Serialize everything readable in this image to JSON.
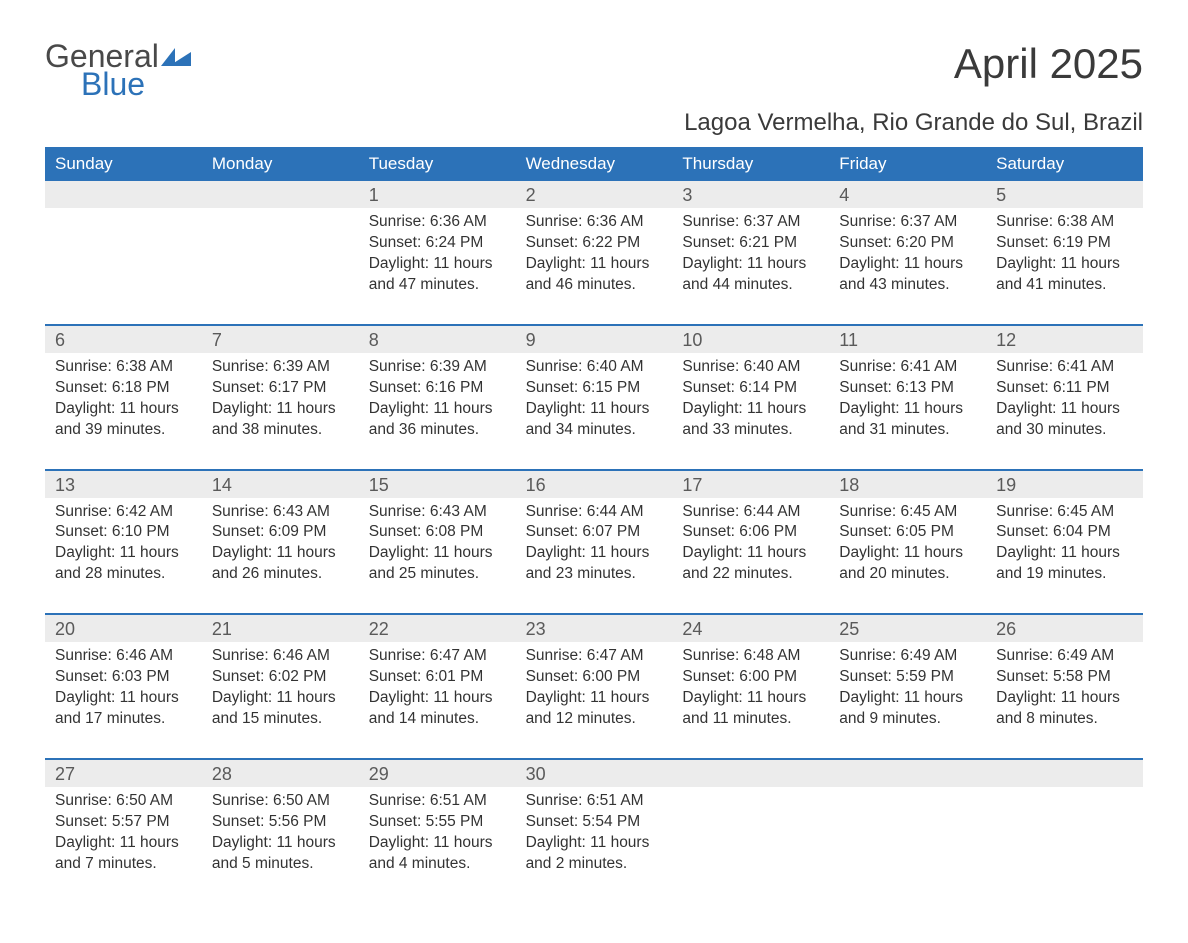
{
  "logo": {
    "word1": "General",
    "word2": "Blue"
  },
  "title": "April 2025",
  "location": "Lagoa Vermelha, Rio Grande do Sul, Brazil",
  "colors": {
    "header_bg": "#2c72b8",
    "header_text": "#ffffff",
    "daynum_bg": "#ececec",
    "text": "#333333",
    "title_text": "#3a3a3a",
    "week_border": "#2c72b8"
  },
  "day_headers": [
    "Sunday",
    "Monday",
    "Tuesday",
    "Wednesday",
    "Thursday",
    "Friday",
    "Saturday"
  ],
  "weeks": [
    [
      {
        "num": "",
        "lines": []
      },
      {
        "num": "",
        "lines": []
      },
      {
        "num": "1",
        "lines": [
          "Sunrise: 6:36 AM",
          "Sunset: 6:24 PM",
          "Daylight: 11 hours",
          "and 47 minutes."
        ]
      },
      {
        "num": "2",
        "lines": [
          "Sunrise: 6:36 AM",
          "Sunset: 6:22 PM",
          "Daylight: 11 hours",
          "and 46 minutes."
        ]
      },
      {
        "num": "3",
        "lines": [
          "Sunrise: 6:37 AM",
          "Sunset: 6:21 PM",
          "Daylight: 11 hours",
          "and 44 minutes."
        ]
      },
      {
        "num": "4",
        "lines": [
          "Sunrise: 6:37 AM",
          "Sunset: 6:20 PM",
          "Daylight: 11 hours",
          "and 43 minutes."
        ]
      },
      {
        "num": "5",
        "lines": [
          "Sunrise: 6:38 AM",
          "Sunset: 6:19 PM",
          "Daylight: 11 hours",
          "and 41 minutes."
        ]
      }
    ],
    [
      {
        "num": "6",
        "lines": [
          "Sunrise: 6:38 AM",
          "Sunset: 6:18 PM",
          "Daylight: 11 hours",
          "and 39 minutes."
        ]
      },
      {
        "num": "7",
        "lines": [
          "Sunrise: 6:39 AM",
          "Sunset: 6:17 PM",
          "Daylight: 11 hours",
          "and 38 minutes."
        ]
      },
      {
        "num": "8",
        "lines": [
          "Sunrise: 6:39 AM",
          "Sunset: 6:16 PM",
          "Daylight: 11 hours",
          "and 36 minutes."
        ]
      },
      {
        "num": "9",
        "lines": [
          "Sunrise: 6:40 AM",
          "Sunset: 6:15 PM",
          "Daylight: 11 hours",
          "and 34 minutes."
        ]
      },
      {
        "num": "10",
        "lines": [
          "Sunrise: 6:40 AM",
          "Sunset: 6:14 PM",
          "Daylight: 11 hours",
          "and 33 minutes."
        ]
      },
      {
        "num": "11",
        "lines": [
          "Sunrise: 6:41 AM",
          "Sunset: 6:13 PM",
          "Daylight: 11 hours",
          "and 31 minutes."
        ]
      },
      {
        "num": "12",
        "lines": [
          "Sunrise: 6:41 AM",
          "Sunset: 6:11 PM",
          "Daylight: 11 hours",
          "and 30 minutes."
        ]
      }
    ],
    [
      {
        "num": "13",
        "lines": [
          "Sunrise: 6:42 AM",
          "Sunset: 6:10 PM",
          "Daylight: 11 hours",
          "and 28 minutes."
        ]
      },
      {
        "num": "14",
        "lines": [
          "Sunrise: 6:43 AM",
          "Sunset: 6:09 PM",
          "Daylight: 11 hours",
          "and 26 minutes."
        ]
      },
      {
        "num": "15",
        "lines": [
          "Sunrise: 6:43 AM",
          "Sunset: 6:08 PM",
          "Daylight: 11 hours",
          "and 25 minutes."
        ]
      },
      {
        "num": "16",
        "lines": [
          "Sunrise: 6:44 AM",
          "Sunset: 6:07 PM",
          "Daylight: 11 hours",
          "and 23 minutes."
        ]
      },
      {
        "num": "17",
        "lines": [
          "Sunrise: 6:44 AM",
          "Sunset: 6:06 PM",
          "Daylight: 11 hours",
          "and 22 minutes."
        ]
      },
      {
        "num": "18",
        "lines": [
          "Sunrise: 6:45 AM",
          "Sunset: 6:05 PM",
          "Daylight: 11 hours",
          "and 20 minutes."
        ]
      },
      {
        "num": "19",
        "lines": [
          "Sunrise: 6:45 AM",
          "Sunset: 6:04 PM",
          "Daylight: 11 hours",
          "and 19 minutes."
        ]
      }
    ],
    [
      {
        "num": "20",
        "lines": [
          "Sunrise: 6:46 AM",
          "Sunset: 6:03 PM",
          "Daylight: 11 hours",
          "and 17 minutes."
        ]
      },
      {
        "num": "21",
        "lines": [
          "Sunrise: 6:46 AM",
          "Sunset: 6:02 PM",
          "Daylight: 11 hours",
          "and 15 minutes."
        ]
      },
      {
        "num": "22",
        "lines": [
          "Sunrise: 6:47 AM",
          "Sunset: 6:01 PM",
          "Daylight: 11 hours",
          "and 14 minutes."
        ]
      },
      {
        "num": "23",
        "lines": [
          "Sunrise: 6:47 AM",
          "Sunset: 6:00 PM",
          "Daylight: 11 hours",
          "and 12 minutes."
        ]
      },
      {
        "num": "24",
        "lines": [
          "Sunrise: 6:48 AM",
          "Sunset: 6:00 PM",
          "Daylight: 11 hours",
          "and 11 minutes."
        ]
      },
      {
        "num": "25",
        "lines": [
          "Sunrise: 6:49 AM",
          "Sunset: 5:59 PM",
          "Daylight: 11 hours",
          "and 9 minutes."
        ]
      },
      {
        "num": "26",
        "lines": [
          "Sunrise: 6:49 AM",
          "Sunset: 5:58 PM",
          "Daylight: 11 hours",
          "and 8 minutes."
        ]
      }
    ],
    [
      {
        "num": "27",
        "lines": [
          "Sunrise: 6:50 AM",
          "Sunset: 5:57 PM",
          "Daylight: 11 hours",
          "and 7 minutes."
        ]
      },
      {
        "num": "28",
        "lines": [
          "Sunrise: 6:50 AM",
          "Sunset: 5:56 PM",
          "Daylight: 11 hours",
          "and 5 minutes."
        ]
      },
      {
        "num": "29",
        "lines": [
          "Sunrise: 6:51 AM",
          "Sunset: 5:55 PM",
          "Daylight: 11 hours",
          "and 4 minutes."
        ]
      },
      {
        "num": "30",
        "lines": [
          "Sunrise: 6:51 AM",
          "Sunset: 5:54 PM",
          "Daylight: 11 hours",
          "and 2 minutes."
        ]
      },
      {
        "num": "",
        "lines": []
      },
      {
        "num": "",
        "lines": []
      },
      {
        "num": "",
        "lines": []
      }
    ]
  ]
}
